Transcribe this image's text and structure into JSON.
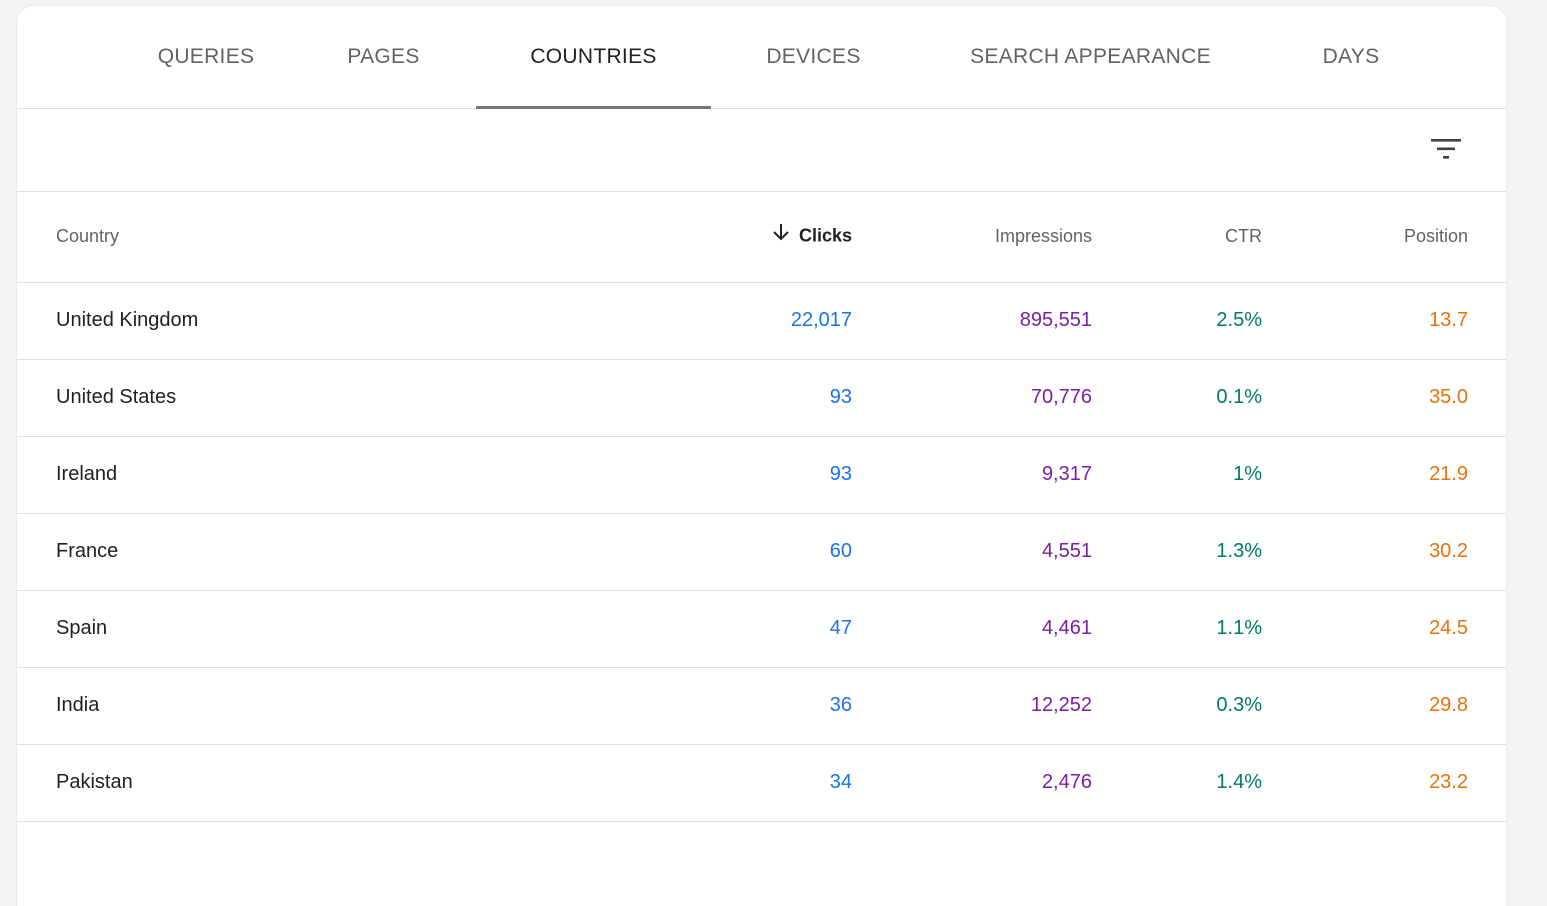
{
  "tabs": [
    {
      "label": "QUERIES"
    },
    {
      "label": "PAGES"
    },
    {
      "label": "COUNTRIES"
    },
    {
      "label": "DEVICES"
    },
    {
      "label": "SEARCH APPEARANCE"
    },
    {
      "label": "DAYS"
    }
  ],
  "active_tab": "COUNTRIES",
  "toolbar": {
    "filter_icon": "filter-list-icon"
  },
  "table": {
    "headers": {
      "country": "Country",
      "clicks": "Clicks",
      "impressions": "Impressions",
      "ctr": "CTR",
      "position": "Position"
    },
    "sort_icon": "arrow-down-icon",
    "rows": [
      {
        "country": "United Kingdom",
        "clicks": "22,017",
        "impressions": "895,551",
        "ctr": "2.5%",
        "position": "13.7"
      },
      {
        "country": "United States",
        "clicks": "93",
        "impressions": "70,776",
        "ctr": "0.1%",
        "position": "35.0"
      },
      {
        "country": "Ireland",
        "clicks": "93",
        "impressions": "9,317",
        "ctr": "1%",
        "position": "21.9"
      },
      {
        "country": "France",
        "clicks": "60",
        "impressions": "4,551",
        "ctr": "1.3%",
        "position": "30.2"
      },
      {
        "country": "Spain",
        "clicks": "47",
        "impressions": "4,461",
        "ctr": "1.1%",
        "position": "24.5"
      },
      {
        "country": "India",
        "clicks": "36",
        "impressions": "12,252",
        "ctr": "0.3%",
        "position": "29.8"
      },
      {
        "country": "Pakistan",
        "clicks": "34",
        "impressions": "2,476",
        "ctr": "1.4%",
        "position": "23.2"
      }
    ]
  },
  "colors": {
    "clicks": "#1a73e8",
    "impressions": "#7b1fa2",
    "ctr": "#00796b",
    "position": "#e8710a"
  }
}
